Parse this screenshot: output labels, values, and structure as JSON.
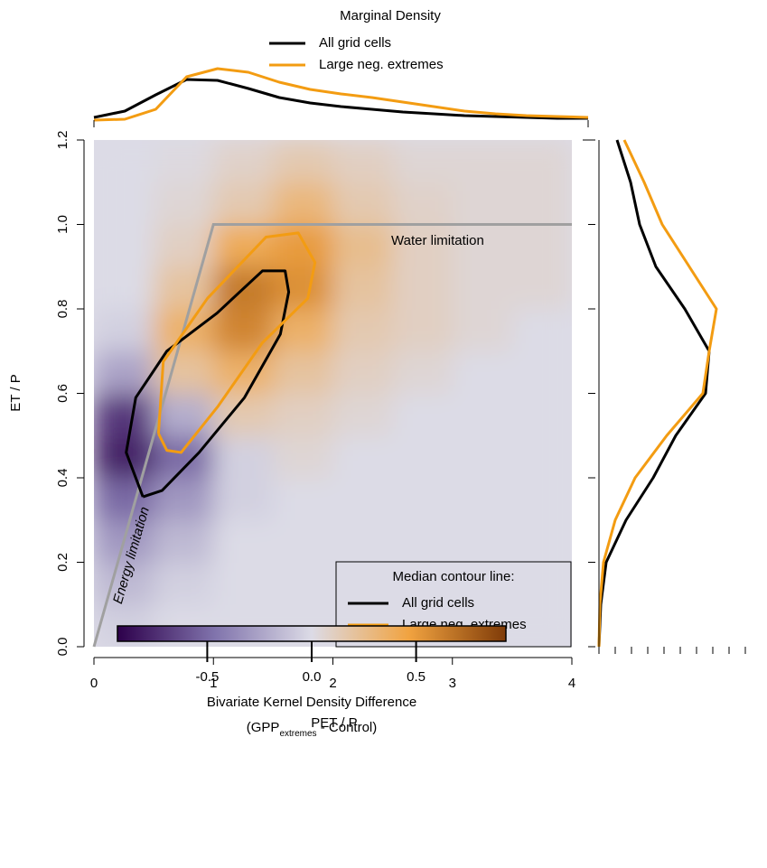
{
  "chart_data": {
    "type": "heatmap",
    "xlabel": "PET / P",
    "ylabel": "ET / P",
    "xlim": [
      0,
      4
    ],
    "ylim": [
      0,
      1.2
    ],
    "xticks": [
      0,
      1,
      2,
      3,
      4
    ],
    "yticks": [
      {
        "value": 0,
        "label": "0.0"
      },
      0.2,
      0.4,
      0.6,
      0.8,
      {
        "value": 1,
        "label": "1.0"
      },
      1.2
    ],
    "x_edges": [
      0,
      0.5,
      1,
      1.5,
      2,
      2.5,
      3,
      3.5,
      4
    ],
    "y_edges": [
      0,
      0.1,
      0.2,
      0.3,
      0.4,
      0.5,
      0.6,
      0.7,
      0.8,
      0.9,
      1.0,
      1.1,
      1.2
    ],
    "z": [
      [
        -0.05,
        0,
        0,
        0,
        0,
        0,
        0,
        0
      ],
      [
        -0.15,
        -0.05,
        0,
        0,
        0,
        0,
        0,
        0
      ],
      [
        -0.3,
        -0.15,
        0,
        0,
        0,
        0,
        0,
        0
      ],
      [
        -0.5,
        -0.3,
        -0.05,
        0,
        0,
        0,
        0,
        0
      ],
      [
        -0.8,
        -0.5,
        -0.05,
        0.05,
        0,
        0,
        0,
        0
      ],
      [
        -0.7,
        -0.2,
        0.15,
        0.1,
        0.05,
        0,
        0,
        0
      ],
      [
        -0.25,
        0.2,
        0.35,
        0.2,
        0.1,
        0.05,
        0,
        0
      ],
      [
        -0.05,
        0.35,
        0.6,
        0.35,
        0.15,
        0.1,
        0.05,
        0
      ],
      [
        0,
        0.2,
        0.65,
        0.55,
        0.2,
        0.1,
        0.05,
        0.05
      ],
      [
        0,
        0.1,
        0.4,
        0.5,
        0.25,
        0.1,
        0.05,
        0.05
      ],
      [
        0,
        0.05,
        0.15,
        0.3,
        0.15,
        0.08,
        0.05,
        0.05
      ],
      [
        0,
        0.02,
        0.08,
        0.15,
        0.1,
        0.05,
        0.05,
        0.05
      ]
    ],
    "clim": [
      -0.93,
      0.93
    ],
    "colormap": [
      "#2d004b",
      "#8073ac",
      "#dcdbe6",
      "#f1a340",
      "#7f3b08"
    ],
    "colorbar": {
      "ticks": [
        -0.5,
        {
          "value": 0,
          "label": "0.0"
        },
        0.5
      ],
      "title": "Bivariate Kernel Density Difference",
      "subtitle": [
        "(GPP",
        "extremes",
        " - Control)"
      ]
    },
    "reference_line": {
      "x": [
        0,
        1,
        4
      ],
      "y": [
        0,
        1,
        1
      ],
      "color": "#a0a0a0"
    },
    "annotations": [
      "Water limitation",
      "Energy limitation"
    ],
    "contours": {
      "title": "Median contour line:",
      "series": [
        {
          "name": "All grid cells",
          "color": "#000000",
          "x": [
            0.41,
            0.27,
            0.35,
            0.61,
            1.03,
            1.41,
            1.6,
            1.63,
            1.56,
            1.26,
            0.88,
            0.57,
            0.41
          ],
          "y": [
            0.355,
            0.46,
            0.59,
            0.7,
            0.79,
            0.89,
            0.89,
            0.84,
            0.74,
            0.59,
            0.46,
            0.37,
            0.355
          ]
        },
        {
          "name": "Large neg. extremes",
          "color": "#f39c12",
          "x": [
            0.54,
            0.58,
            0.95,
            1.44,
            1.71,
            1.85,
            1.79,
            1.41,
            1.04,
            0.73,
            0.61,
            0.54
          ],
          "y": [
            0.505,
            0.675,
            0.825,
            0.97,
            0.98,
            0.91,
            0.825,
            0.72,
            0.57,
            0.46,
            0.465,
            0.505
          ]
        }
      ]
    },
    "marginal": {
      "title": "Marginal Density",
      "top": {
        "x": [
          0,
          0.25,
          0.5,
          0.75,
          1,
          1.25,
          1.5,
          1.75,
          2,
          2.25,
          2.5,
          2.75,
          3,
          3.25,
          3.5,
          3.75,
          4
        ],
        "series": [
          {
            "name": "All grid cells",
            "color": "#000000",
            "values": [
              0.03,
              0.1,
              0.28,
              0.45,
              0.44,
              0.35,
              0.25,
              0.19,
              0.15,
              0.12,
              0.09,
              0.07,
              0.05,
              0.04,
              0.03,
              0.02,
              0.02
            ]
          },
          {
            "name": "Large neg. extremes",
            "color": "#f39c12",
            "values": [
              0,
              0.01,
              0.12,
              0.48,
              0.57,
              0.53,
              0.42,
              0.34,
              0.29,
              0.25,
              0.2,
              0.15,
              0.1,
              0.07,
              0.05,
              0.04,
              0.03
            ]
          }
        ]
      },
      "right": {
        "y": [
          0,
          0.1,
          0.2,
          0.3,
          0.4,
          0.5,
          0.6,
          0.7,
          0.8,
          0.9,
          1.0,
          1.1,
          1.2
        ],
        "series": [
          {
            "name": "All grid cells",
            "color": "#000000",
            "values": [
              0,
              0.02,
              0.08,
              0.3,
              0.6,
              0.85,
              1.18,
              1.22,
              0.95,
              0.63,
              0.45,
              0.35,
              0.2
            ]
          },
          {
            "name": "Large neg. extremes",
            "color": "#f39c12",
            "values": [
              0,
              0.01,
              0.05,
              0.18,
              0.4,
              0.75,
              1.15,
              1.22,
              1.3,
              1.0,
              0.7,
              0.5,
              0.28
            ]
          }
        ]
      }
    }
  }
}
